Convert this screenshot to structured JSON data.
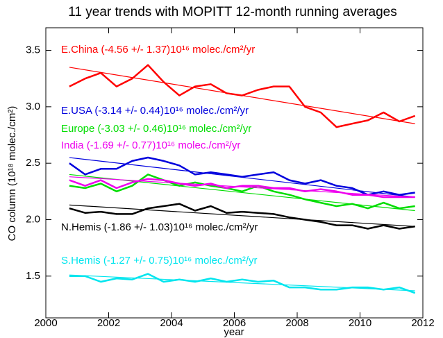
{
  "chart_data": {
    "type": "line",
    "title": "11 year trends with MOPITT 12-month running averages",
    "x_label": "year",
    "y_label": "CO column (10¹⁸ molec./cm²)",
    "xlim": [
      2000,
      2012
    ],
    "ylim": [
      1.13,
      3.7
    ],
    "xticks": [
      2000,
      2002,
      2004,
      2006,
      2008,
      2010,
      2012
    ],
    "yticks": [
      1.5,
      {
        "value": 2,
        "label": "2.0"
      },
      2.5,
      {
        "value": 3,
        "label": "3.0"
      },
      3.5
    ],
    "x": [
      2000.75,
      2001.25,
      2001.75,
      2002.25,
      2002.75,
      2003.25,
      2003.75,
      2004.25,
      2004.75,
      2005.25,
      2005.75,
      2006.25,
      2006.75,
      2007.25,
      2007.75,
      2008.25,
      2008.75,
      2009.25,
      2009.75,
      2010.25,
      2010.75,
      2011.25,
      2011.75
    ],
    "trend_x": [
      2000.75,
      2011.75
    ],
    "series": [
      {
        "name": "E.China (-4.56 +/- 1.37)10¹⁶ molec./cm²/yr",
        "color": "#ff0000",
        "trend": [
          3.35,
          2.85
        ],
        "values": [
          3.18,
          3.25,
          3.3,
          3.18,
          3.25,
          3.37,
          3.22,
          3.1,
          3.18,
          3.2,
          3.12,
          3.1,
          3.15,
          3.18,
          3.18,
          3.0,
          2.95,
          2.82,
          2.85,
          2.88,
          2.95,
          2.87,
          2.92
        ]
      },
      {
        "name": "E.USA (-3.14 +/- 0.44)10¹⁶ molec./cm²/yr",
        "color": "#0000dd",
        "trend": [
          2.55,
          2.2
        ],
        "values": [
          2.5,
          2.4,
          2.45,
          2.45,
          2.52,
          2.55,
          2.52,
          2.48,
          2.4,
          2.42,
          2.4,
          2.38,
          2.4,
          2.42,
          2.35,
          2.32,
          2.35,
          2.3,
          2.28,
          2.22,
          2.25,
          2.22,
          2.24
        ]
      },
      {
        "name": "Europe (-3.03 +/- 0.46)10¹⁶ molec./cm²/yr",
        "color": "#00dd00",
        "trend": [
          2.4,
          2.08
        ],
        "values": [
          2.3,
          2.28,
          2.32,
          2.25,
          2.3,
          2.4,
          2.35,
          2.3,
          2.33,
          2.3,
          2.28,
          2.25,
          2.3,
          2.25,
          2.22,
          2.18,
          2.15,
          2.12,
          2.14,
          2.1,
          2.15,
          2.1,
          2.12
        ]
      },
      {
        "name": "India (-1.69 +/- 0.77)10¹⁶ molec./cm²/yr",
        "color": "#ee00ee",
        "trend": [
          2.38,
          2.2
        ],
        "values": [
          2.35,
          2.3,
          2.35,
          2.28,
          2.33,
          2.36,
          2.35,
          2.32,
          2.3,
          2.32,
          2.28,
          2.3,
          2.3,
          2.28,
          2.28,
          2.25,
          2.27,
          2.25,
          2.22,
          2.22,
          2.2,
          2.2,
          2.2
        ]
      },
      {
        "name": "N.Hemis (-1.86 +/- 1.03)10¹⁶ molec./cm²/yr",
        "color": "#000000",
        "trend": [
          2.13,
          1.94
        ],
        "values": [
          2.1,
          2.06,
          2.07,
          2.05,
          2.05,
          2.1,
          2.12,
          2.14,
          2.08,
          2.12,
          2.06,
          2.07,
          2.06,
          2.05,
          2.02,
          2.0,
          1.98,
          1.95,
          1.95,
          1.92,
          1.95,
          1.92,
          1.94
        ]
      },
      {
        "name": "S.Hemis (-1.27 +/- 0.75)10¹⁶ molec./cm²/yr",
        "color": "#00e5ee",
        "trend": [
          1.51,
          1.37
        ],
        "values": [
          1.5,
          1.5,
          1.45,
          1.48,
          1.47,
          1.52,
          1.45,
          1.47,
          1.45,
          1.48,
          1.45,
          1.47,
          1.45,
          1.46,
          1.4,
          1.4,
          1.38,
          1.38,
          1.4,
          1.4,
          1.38,
          1.4,
          1.35
        ]
      }
    ]
  }
}
